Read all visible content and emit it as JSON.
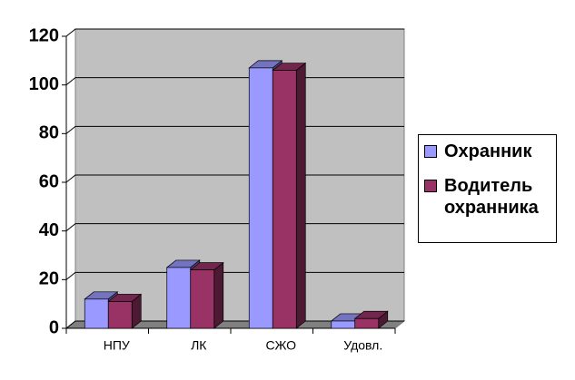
{
  "chart_data": {
    "type": "bar3d",
    "categories": [
      "НПУ",
      "ЛК",
      "СЖО",
      "Удовл."
    ],
    "series": [
      {
        "name": "Охранник",
        "color": "#9999ff",
        "values": [
          12,
          25,
          107,
          3
        ]
      },
      {
        "name": "Водитель охранника",
        "color": "#993366",
        "values": [
          11,
          24,
          106,
          4
        ]
      }
    ],
    "ylim": [
      0,
      120
    ],
    "yticks": [
      0,
      20,
      40,
      60,
      80,
      100,
      120
    ],
    "grid": true,
    "legend": "right"
  }
}
